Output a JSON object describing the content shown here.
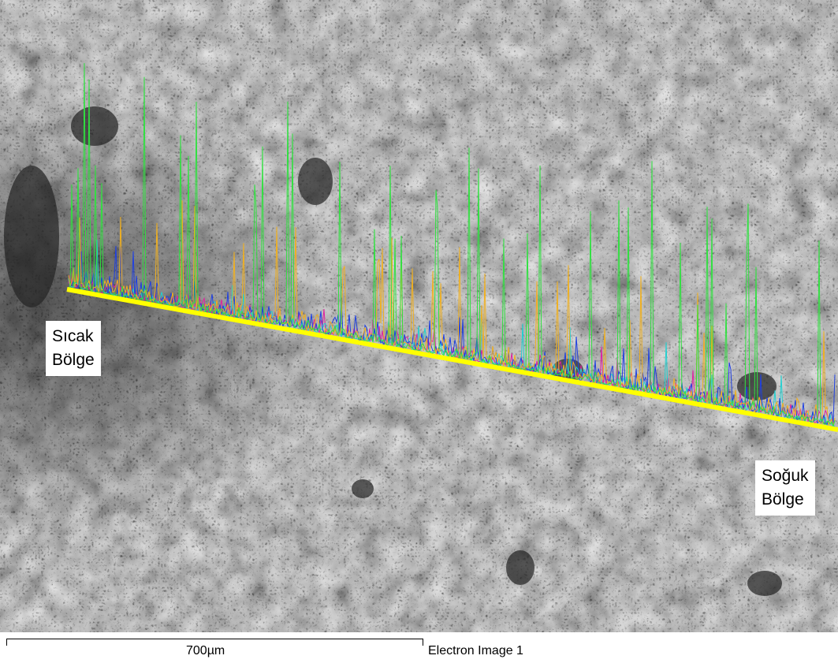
{
  "annotations": [
    {
      "lines": [
        "Sıcak",
        "Bölge"
      ]
    },
    {
      "lines": [
        "Soğuk",
        "Bölge"
      ]
    }
  ],
  "scale_bar": {
    "label": "700µm"
  },
  "caption": "Electron Image 1"
}
